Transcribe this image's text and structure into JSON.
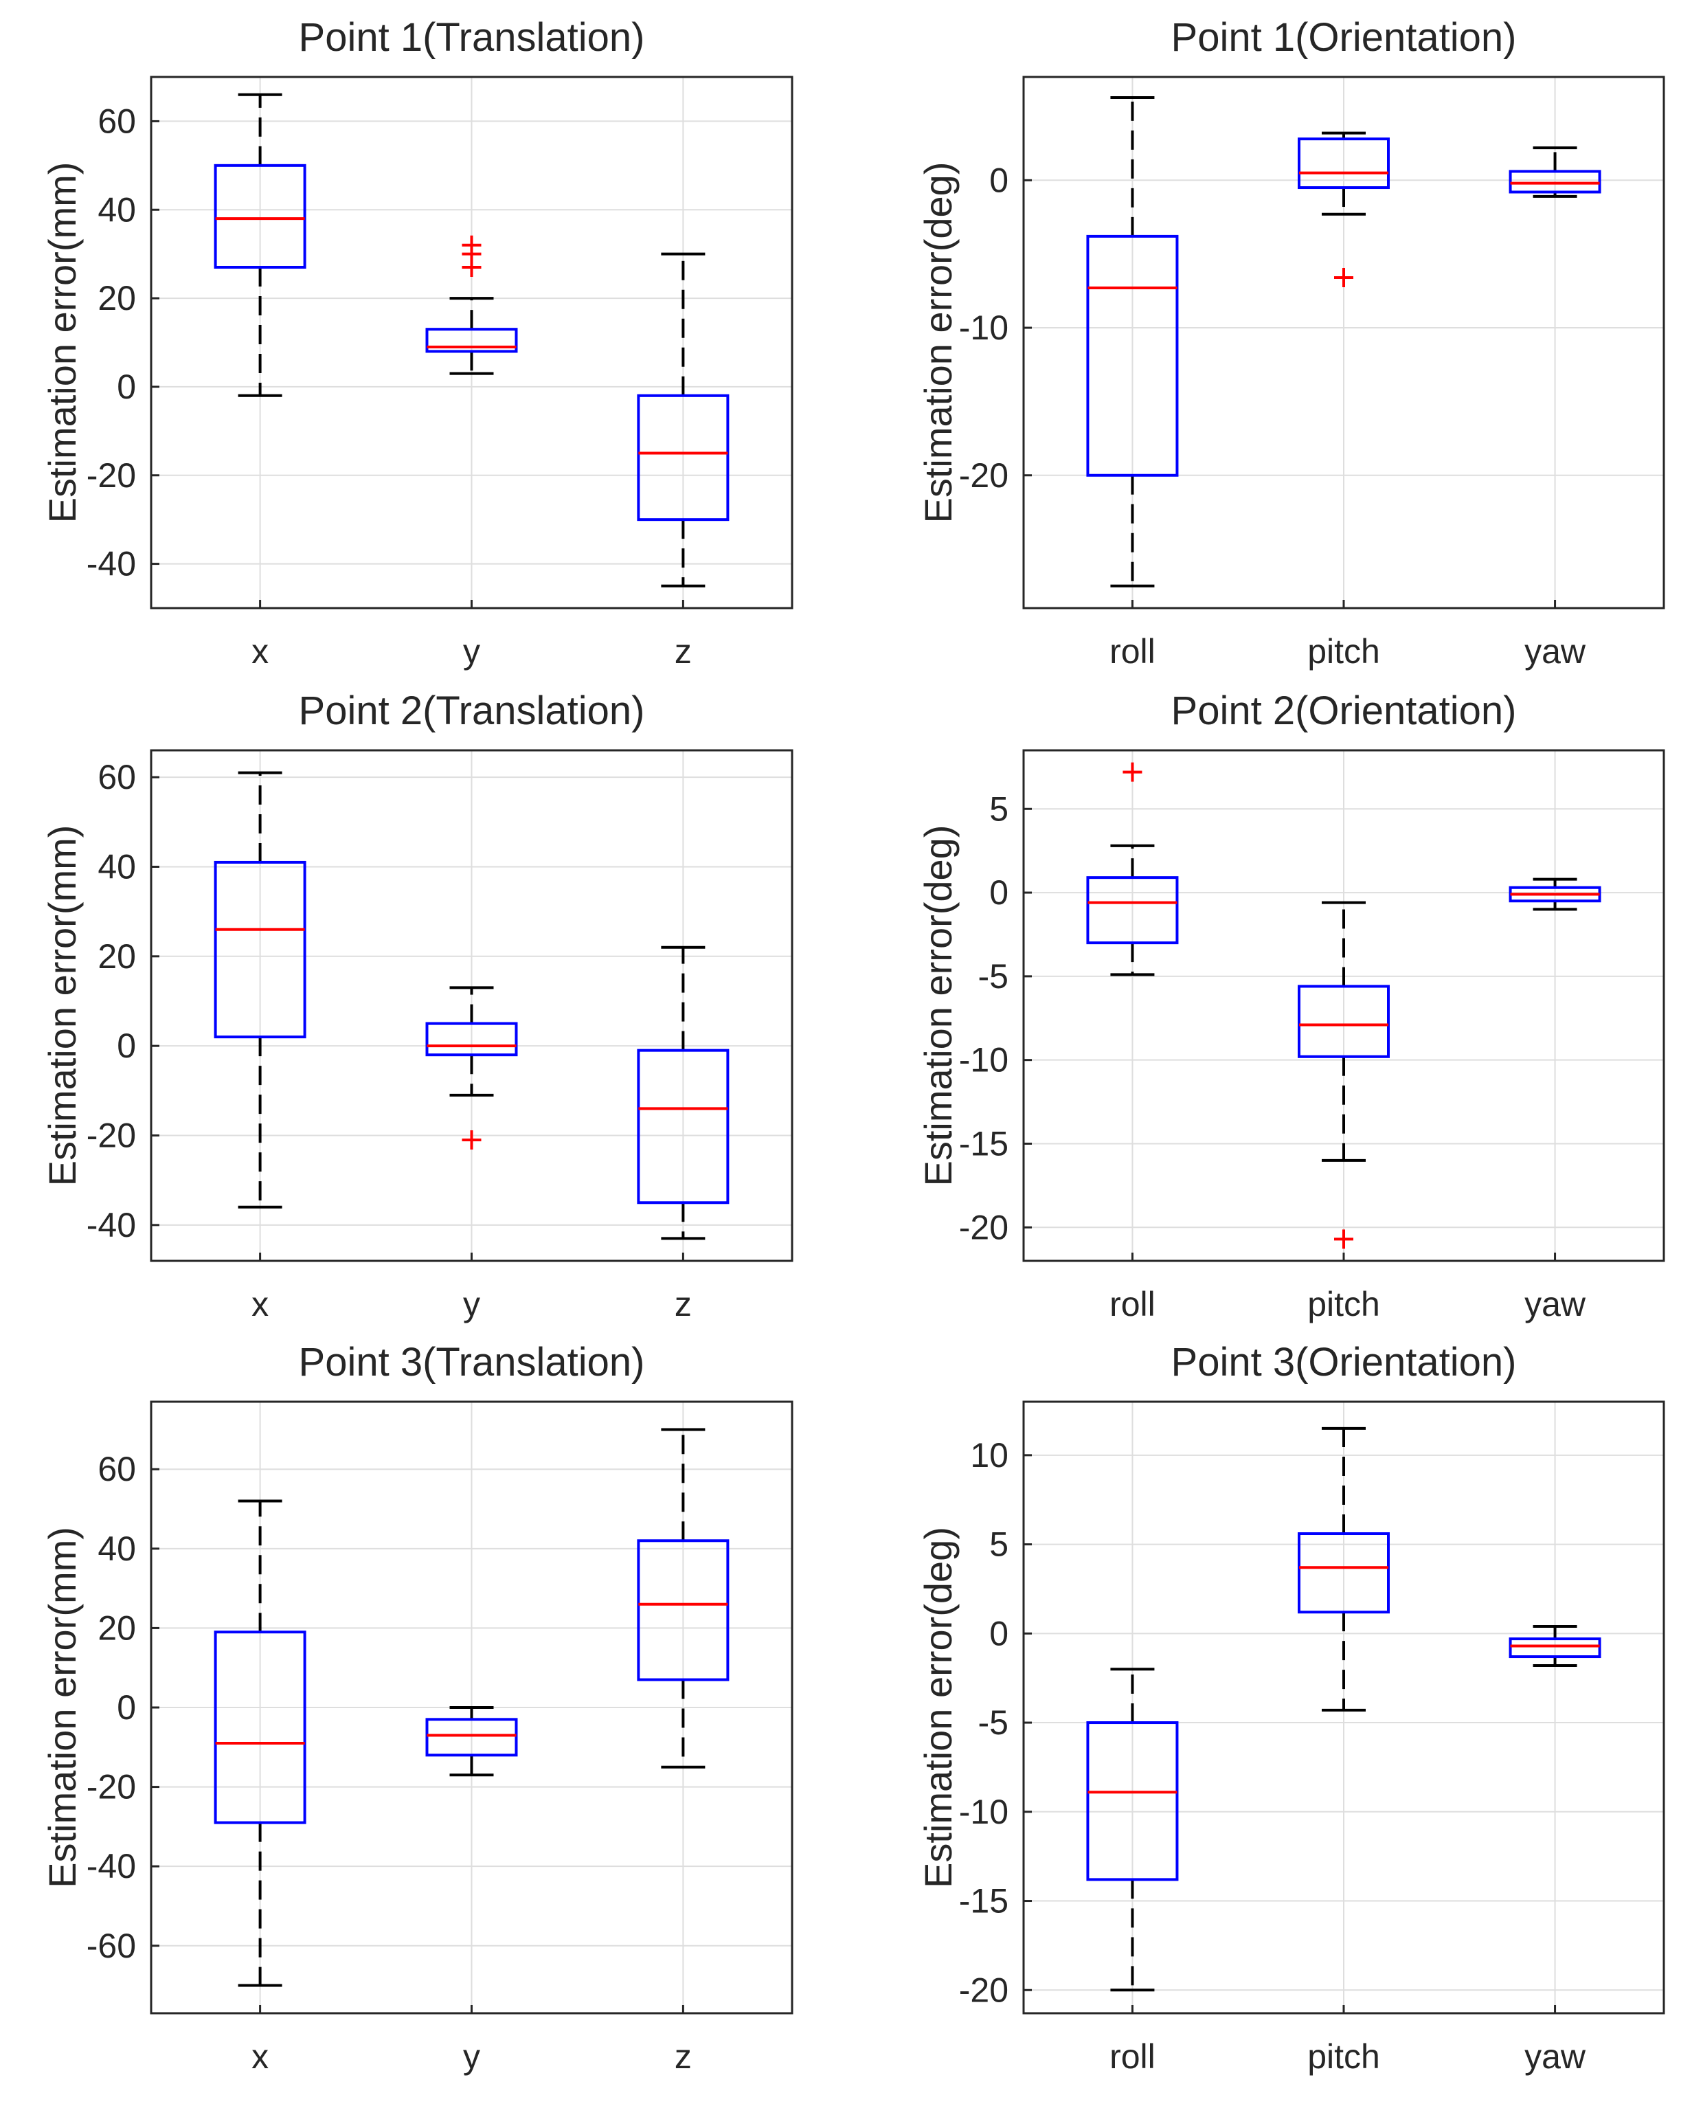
{
  "chart_data": [
    {
      "type": "boxplot",
      "title": "Point 1(Translation)",
      "ylabel": "Estimation error(mm)",
      "categories": [
        "x",
        "y",
        "z"
      ],
      "ylim": [
        -50,
        70
      ],
      "yticks": [
        -40,
        -20,
        0,
        20,
        40,
        60
      ],
      "boxes": [
        {
          "whisker_low": -2,
          "q1": 27,
          "median": 38,
          "q3": 50,
          "whisker_high": 66,
          "outliers": []
        },
        {
          "whisker_low": 3,
          "q1": 8,
          "median": 9,
          "q3": 13,
          "whisker_high": 20,
          "outliers": [
            27,
            30,
            32
          ]
        },
        {
          "whisker_low": -45,
          "q1": -30,
          "median": -15,
          "q3": -2,
          "whisker_high": 30,
          "outliers": []
        }
      ]
    },
    {
      "type": "boxplot",
      "title": "Point 1(Orientation)",
      "ylabel": "Estimation error(deg)",
      "categories": [
        "roll",
        "pitch",
        "yaw"
      ],
      "ylim": [
        -29,
        7
      ],
      "yticks": [
        -20,
        -10,
        0
      ],
      "boxes": [
        {
          "whisker_low": -27.5,
          "q1": -20,
          "median": -7.3,
          "q3": -3.8,
          "whisker_high": 5.6,
          "outliers": []
        },
        {
          "whisker_low": -2.3,
          "q1": -0.5,
          "median": 0.5,
          "q3": 2.8,
          "whisker_high": 3.2,
          "outliers": [
            -6.6
          ]
        },
        {
          "whisker_low": -1.1,
          "q1": -0.8,
          "median": -0.2,
          "q3": 0.6,
          "whisker_high": 2.2,
          "outliers": []
        }
      ]
    },
    {
      "type": "boxplot",
      "title": "Point 2(Translation)",
      "ylabel": "Estimation error(mm)",
      "categories": [
        "x",
        "y",
        "z"
      ],
      "ylim": [
        -48,
        66
      ],
      "yticks": [
        -40,
        -20,
        0,
        20,
        40,
        60
      ],
      "boxes": [
        {
          "whisker_low": -36,
          "q1": 2,
          "median": 26,
          "q3": 41,
          "whisker_high": 61,
          "outliers": []
        },
        {
          "whisker_low": -11,
          "q1": -2,
          "median": 0,
          "q3": 5,
          "whisker_high": 13,
          "outliers": [
            -21
          ]
        },
        {
          "whisker_low": -43,
          "q1": -35,
          "median": -14,
          "q3": -1,
          "whisker_high": 22,
          "outliers": []
        }
      ]
    },
    {
      "type": "boxplot",
      "title": "Point 2(Orientation)",
      "ylabel": "Estimation error(deg)",
      "categories": [
        "roll",
        "pitch",
        "yaw"
      ],
      "ylim": [
        -22,
        8.5
      ],
      "yticks": [
        -20,
        -15,
        -10,
        -5,
        0,
        5
      ],
      "boxes": [
        {
          "whisker_low": -4.9,
          "q1": -3,
          "median": -0.6,
          "q3": 0.9,
          "whisker_high": 2.8,
          "outliers": [
            7.2
          ]
        },
        {
          "whisker_low": -16,
          "q1": -9.8,
          "median": -7.9,
          "q3": -5.6,
          "whisker_high": -0.6,
          "outliers": [
            -20.7
          ]
        },
        {
          "whisker_low": -1,
          "q1": -0.5,
          "median": -0.1,
          "q3": 0.3,
          "whisker_high": 0.8,
          "outliers": []
        }
      ]
    },
    {
      "type": "boxplot",
      "title": "Point 3(Translation)",
      "ylabel": "Estimation error(mm)",
      "categories": [
        "x",
        "y",
        "z"
      ],
      "ylim": [
        -77,
        77
      ],
      "yticks": [
        -60,
        -40,
        -20,
        0,
        20,
        40,
        60
      ],
      "boxes": [
        {
          "whisker_low": -70,
          "q1": -29,
          "median": -9,
          "q3": 19,
          "whisker_high": 52,
          "outliers": []
        },
        {
          "whisker_low": -17,
          "q1": -12,
          "median": -7,
          "q3": -3,
          "whisker_high": 0,
          "outliers": []
        },
        {
          "whisker_low": -15,
          "q1": 7,
          "median": 26,
          "q3": 42,
          "whisker_high": 70,
          "outliers": []
        }
      ]
    },
    {
      "type": "boxplot",
      "title": "Point 3(Orientation)",
      "ylabel": "Estimation error(deg)",
      "categories": [
        "roll",
        "pitch",
        "yaw"
      ],
      "ylim": [
        -21.3,
        13
      ],
      "yticks": [
        -20,
        -15,
        -10,
        -5,
        0,
        5,
        10
      ],
      "boxes": [
        {
          "whisker_low": -20,
          "q1": -13.8,
          "median": -8.9,
          "q3": -5,
          "whisker_high": -2,
          "outliers": []
        },
        {
          "whisker_low": -4.3,
          "q1": 1.2,
          "median": 3.7,
          "q3": 5.6,
          "whisker_high": 11.5,
          "outliers": []
        },
        {
          "whisker_low": -1.8,
          "q1": -1.3,
          "median": -0.7,
          "q3": -0.3,
          "whisker_high": 0.4,
          "outliers": []
        }
      ]
    }
  ]
}
